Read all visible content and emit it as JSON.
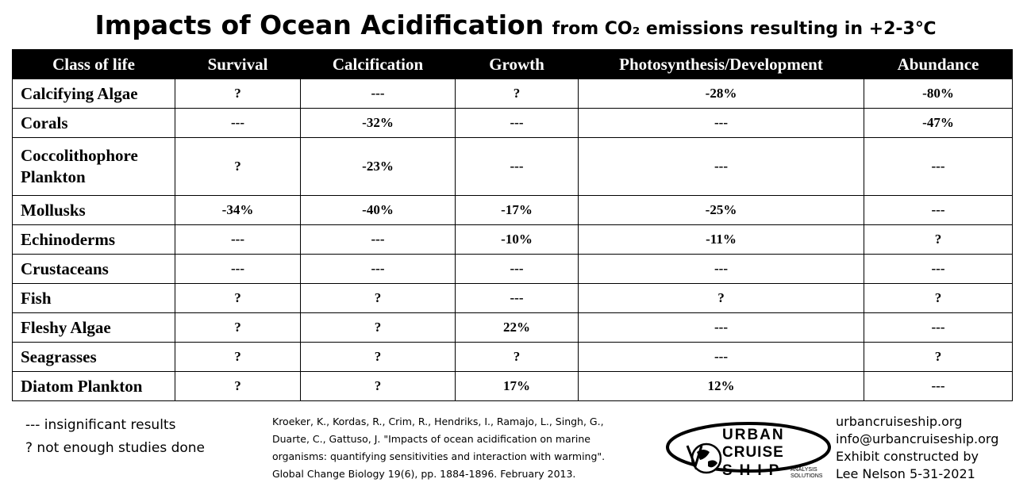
{
  "title": {
    "main": "Impacts of Ocean Acidification",
    "sub": "from CO₂ emissions resulting in +2-3℃"
  },
  "table": {
    "headers": [
      "Class of life",
      "Survival",
      "Calcification",
      "Growth",
      "Photosynthesis/Development",
      "Abundance"
    ],
    "rows": [
      {
        "name": "Calcifying Algae",
        "cells": [
          "?",
          "---",
          "?",
          "-28%",
          "-80%"
        ]
      },
      {
        "name": "Corals",
        "cells": [
          "---",
          "-32%",
          "---",
          "---",
          "-47%"
        ]
      },
      {
        "name": "Coccolithophore Plankton",
        "name_line1": "Coccolithophore",
        "name_line2": "Plankton",
        "cells": [
          "?",
          "-23%",
          "---",
          "---",
          "---"
        ]
      },
      {
        "name": "Mollusks",
        "cells": [
          "-34%",
          "-40%",
          "-17%",
          "-25%",
          "---"
        ]
      },
      {
        "name": "Echinoderms",
        "cells": [
          "---",
          "---",
          "-10%",
          "-11%",
          "?"
        ]
      },
      {
        "name": "Crustaceans",
        "cells": [
          "---",
          "---",
          "---",
          "---",
          "---"
        ]
      },
      {
        "name": "Fish",
        "cells": [
          "?",
          "?",
          "---",
          "?",
          "?"
        ]
      },
      {
        "name": "Fleshy Algae",
        "cells": [
          "?",
          "?",
          "22%",
          "---",
          "---"
        ]
      },
      {
        "name": "Seagrasses",
        "cells": [
          "?",
          "?",
          "?",
          "---",
          "?"
        ]
      },
      {
        "name": "Diatom Plankton",
        "cells": [
          "?",
          "?",
          "17%",
          "12%",
          "---"
        ]
      }
    ]
  },
  "legend": {
    "insignificant": "--- insignificant results",
    "not_enough": "?  not enough studies done"
  },
  "citation": {
    "line1": "Kroeker, K., Kordas, R., Crim, R., Hendriks, I., Ramajo, L., Singh, G.,",
    "line2": "Duarte, C., Gattuso, J. \"Impacts of ocean acidification on marine",
    "line3": "organisms: quantifying sensitivities and interaction with warming\".",
    "line4": "Global Change Biology 19(6), pp. 1884-1896. February 2013."
  },
  "logo": {
    "word1": "URBAN",
    "word2": "CRUISE",
    "word3": "SHIP",
    "tag1": "ANALYSIS",
    "tag2": "SOLUTIONS"
  },
  "contact": {
    "site": "urbancruiseship.org",
    "email": "info@urbancruiseship.org",
    "line3": "Exhibit constructed by",
    "line4": "Lee Nelson 5-31-2021"
  }
}
